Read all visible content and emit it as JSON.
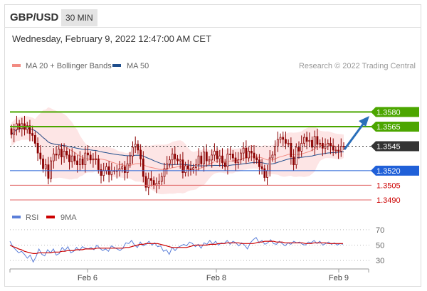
{
  "header": {
    "symbol": "GBP/USD",
    "timeframe": "30 MIN"
  },
  "datetime": "Wednesday, February 9, 2022 12:47:00 AM CET",
  "legend": [
    {
      "label": "MA 20 + Bollinger Bands",
      "color": "#f28b82"
    },
    {
      "label": "MA 50",
      "color": "#1f4e8c"
    }
  ],
  "credit": "Research © 2022 Trading Central",
  "rsi_legend": [
    {
      "label": "RSI",
      "color": "#5b7fd9"
    },
    {
      "label": "9MA",
      "color": "#cc0000"
    }
  ],
  "colors": {
    "green": "#4ca600",
    "blue": "#2060d8",
    "red": "#e06060",
    "candle": "#8b0000",
    "band": "#fcdcdc",
    "ma20": "#f28b82",
    "ma50": "#1f4e8c",
    "current": "#333333"
  },
  "chart_data": [
    {
      "type": "candlestick",
      "title": "GBP/USD",
      "x_tick_labels": [
        "Feb 6",
        "Feb 8",
        "Feb 9"
      ],
      "ylim": [
        1.3482,
        1.3616
      ],
      "series": [
        {
          "name": "GBP/USD",
          "close": [
            1.3557,
            1.3562,
            1.3568,
            1.3563,
            1.3568,
            1.3562,
            1.3566,
            1.3558,
            1.3556,
            1.3548,
            1.3538,
            1.3532,
            1.3522,
            1.3526,
            1.3512,
            1.353,
            1.3537,
            1.3536,
            1.3542,
            1.3534,
            1.354,
            1.3536,
            1.3529,
            1.3535,
            1.353,
            1.3526,
            1.3532,
            1.3526,
            1.3538,
            1.3536,
            1.3531,
            1.3532,
            1.3532,
            1.3521,
            1.3515,
            1.352,
            1.3524,
            1.3516,
            1.352,
            1.352,
            1.352,
            1.3522,
            1.3524,
            1.3518,
            1.3527,
            1.3535,
            1.3544,
            1.3547,
            1.3541,
            1.3532,
            1.3514,
            1.3503,
            1.3512,
            1.351,
            1.3505,
            1.3507,
            1.3509,
            1.3514,
            1.3522,
            1.3527,
            1.3531,
            1.3537,
            1.3532,
            1.353,
            1.3531,
            1.3518,
            1.3525,
            1.3522,
            1.3521,
            1.3523,
            1.3526,
            1.3535,
            1.3527,
            1.3539,
            1.353,
            1.3531,
            1.3536,
            1.354,
            1.3532,
            1.3535,
            1.3528,
            1.3524,
            1.3537,
            1.3537,
            1.3533,
            1.3528,
            1.3531,
            1.3538,
            1.3543,
            1.3533,
            1.354,
            1.3538,
            1.3533,
            1.3531,
            1.3524,
            1.3522,
            1.3513,
            1.352,
            1.3533,
            1.3536,
            1.3545,
            1.3552,
            1.3554,
            1.3552,
            1.3548,
            1.3548,
            1.3534,
            1.3526,
            1.3544,
            1.354,
            1.3548,
            1.3554,
            1.355,
            1.3551,
            1.3544,
            1.3555,
            1.3547,
            1.3548,
            1.3543,
            1.3545,
            1.3548,
            1.3545,
            1.3541,
            1.3541,
            1.354,
            1.3545,
            1.3545
          ],
          "open": [
            1.3563,
            1.3557,
            1.3562,
            1.3568,
            1.3563,
            1.3568,
            1.3562,
            1.3566,
            1.3558,
            1.3556,
            1.3548,
            1.3538,
            1.3532,
            1.3522,
            1.3526,
            1.3512,
            1.353,
            1.3537,
            1.3536,
            1.3542,
            1.3534,
            1.354,
            1.3536,
            1.3529,
            1.3535,
            1.353,
            1.3526,
            1.3532,
            1.3526,
            1.3538,
            1.3536,
            1.3531,
            1.3532,
            1.3532,
            1.3521,
            1.3515,
            1.352,
            1.3524,
            1.3516,
            1.352,
            1.352,
            1.352,
            1.3522,
            1.3524,
            1.3518,
            1.3527,
            1.3535,
            1.3544,
            1.3547,
            1.3541,
            1.3532,
            1.3514,
            1.3503,
            1.3512,
            1.351,
            1.3505,
            1.3507,
            1.3509,
            1.3514,
            1.3522,
            1.3527,
            1.3531,
            1.3537,
            1.3532,
            1.353,
            1.3531,
            1.3518,
            1.3525,
            1.3522,
            1.3521,
            1.3523,
            1.3526,
            1.3535,
            1.3527,
            1.3539,
            1.353,
            1.3531,
            1.3536,
            1.354,
            1.3532,
            1.3535,
            1.3528,
            1.3524,
            1.3537,
            1.3537,
            1.3533,
            1.3528,
            1.3531,
            1.3538,
            1.3543,
            1.3533,
            1.354,
            1.3538,
            1.3533,
            1.3531,
            1.3524,
            1.3522,
            1.3513,
            1.352,
            1.3533,
            1.3536,
            1.3545,
            1.3552,
            1.3554,
            1.3552,
            1.3548,
            1.3548,
            1.3534,
            1.3526,
            1.3544,
            1.354,
            1.3548,
            1.3554,
            1.355,
            1.3551,
            1.3544,
            1.3555,
            1.3547,
            1.3548,
            1.3543,
            1.3545,
            1.3548,
            1.3545,
            1.3541,
            1.3541,
            1.354,
            1.3545
          ]
        }
      ],
      "horizontal_levels": [
        {
          "label": "1.3580",
          "value": 1.358,
          "color": "#4ca600",
          "style": "solid"
        },
        {
          "label": "1.3565",
          "value": 1.3565,
          "color": "#4ca600",
          "style": "solid"
        },
        {
          "label": "1.3545",
          "value": 1.3545,
          "color": "#333333",
          "style": "dotted"
        },
        {
          "label": "1.3520",
          "value": 1.352,
          "color": "#2060d8",
          "style": "solid"
        },
        {
          "label": "1.3505",
          "value": 1.3505,
          "color": "#e06060",
          "style": "solid"
        },
        {
          "label": "1.3490",
          "value": 1.349,
          "color": "#e06060",
          "style": "solid"
        }
      ],
      "annotations": [
        "Upward arrow from current price toward 1.3580"
      ]
    },
    {
      "type": "line",
      "x_tick_labels": [
        "Feb 6",
        "Feb 8",
        "Feb 9"
      ],
      "y_tick_labels": [
        "70",
        "50",
        "30"
      ],
      "ylim": [
        20,
        80
      ],
      "series": [
        {
          "name": "RSI",
          "values": [
            55,
            48,
            44,
            40,
            42,
            38,
            33,
            37,
            28,
            35,
            45,
            38,
            36,
            44,
            40,
            45,
            37,
            39,
            47,
            43,
            48,
            40,
            42,
            47,
            43,
            48,
            46,
            45,
            47,
            44,
            50,
            46,
            43,
            45,
            42,
            49,
            47,
            45,
            43,
            46,
            53,
            52,
            56,
            50,
            47,
            54,
            49,
            51,
            55,
            50,
            53,
            48,
            49,
            42,
            44,
            38,
            47,
            43,
            47,
            49,
            51,
            49,
            54,
            52,
            48,
            51,
            46,
            53,
            51,
            56,
            51,
            55,
            50,
            53,
            52,
            56,
            51,
            55,
            53,
            49,
            53,
            50,
            45,
            53,
            57,
            60,
            53,
            56,
            51,
            53,
            57,
            52,
            51,
            55,
            52,
            49,
            53,
            51,
            55,
            53,
            54,
            51,
            50,
            54,
            53,
            56,
            52,
            55,
            50,
            52,
            54,
            51,
            53,
            50,
            52,
            51
          ]
        },
        {
          "name": "9MA",
          "values": [
            50,
            48,
            47,
            45,
            44,
            42,
            41,
            40,
            39,
            39,
            40,
            40,
            40,
            40,
            40,
            41,
            41,
            41,
            42,
            42,
            43,
            43,
            43,
            44,
            44,
            44,
            45,
            45,
            45,
            45,
            46,
            46,
            46,
            46,
            46,
            46,
            46,
            46,
            46,
            46,
            47,
            47,
            48,
            49,
            50,
            51,
            51,
            52,
            52,
            52,
            52,
            52,
            51,
            50,
            49,
            48,
            47,
            47,
            47,
            47,
            47,
            47,
            48,
            49,
            50,
            50,
            50,
            50,
            50,
            51,
            51,
            51,
            52,
            52,
            52,
            53,
            53,
            53,
            53,
            53,
            52,
            52,
            52,
            52,
            52,
            53,
            54,
            54,
            55,
            55,
            55,
            55,
            54,
            54,
            54,
            53,
            53,
            53,
            53,
            53,
            53,
            53,
            52,
            52,
            52,
            53,
            53,
            53,
            53,
            53,
            52,
            52,
            52,
            52,
            52,
            52
          ]
        }
      ]
    }
  ]
}
